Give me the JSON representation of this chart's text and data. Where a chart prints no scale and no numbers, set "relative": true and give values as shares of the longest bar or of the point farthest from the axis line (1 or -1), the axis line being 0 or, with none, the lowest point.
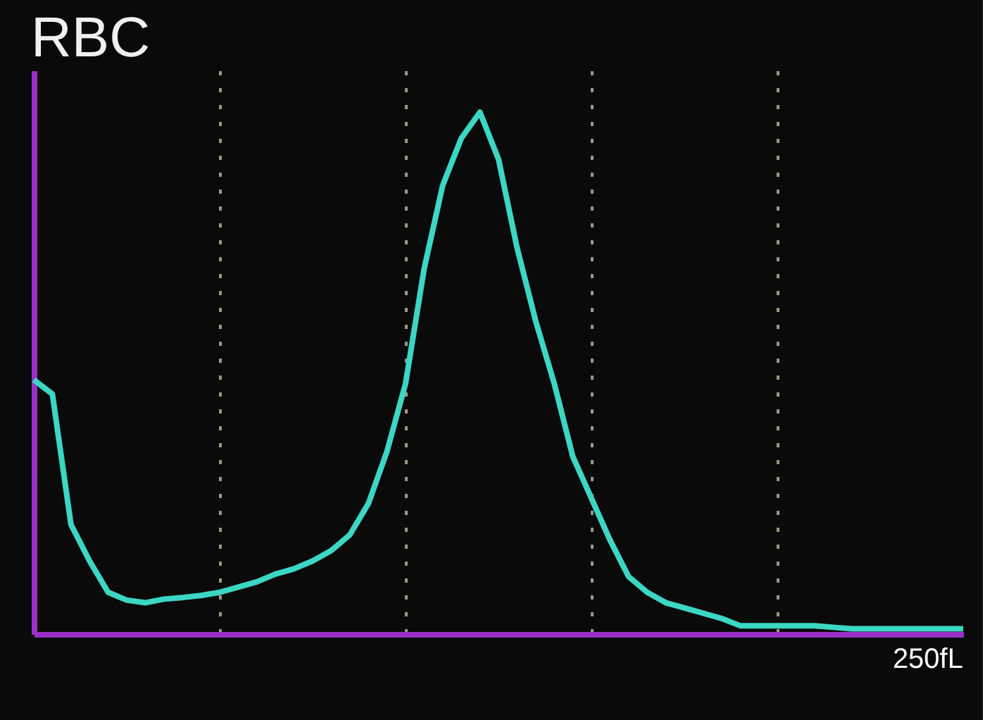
{
  "chart_data": {
    "type": "line",
    "title": "RBC",
    "relative": true,
    "grid": "x",
    "marker": "none",
    "line_style": "solid",
    "annotations": [
      "250fL"
    ],
    "categories": [
      null,
      null,
      null,
      null,
      null,
      null,
      null,
      null,
      null,
      null,
      null,
      null,
      null,
      null,
      null,
      null,
      null,
      null,
      null,
      null,
      null,
      null,
      null,
      null,
      null,
      null,
      null,
      null,
      null,
      null,
      null,
      null,
      null,
      null,
      null,
      null,
      null,
      null,
      null,
      null,
      null,
      null,
      null,
      null,
      null,
      null,
      null,
      null,
      null,
      null,
      null
    ],
    "series": [
      {
        "color": "#3cd6c4",
        "values": [
          0.487,
          0.46,
          0.21,
          0.14,
          0.08,
          0.065,
          0.06,
          0.067,
          0.07,
          0.074,
          0.08,
          0.09,
          0.1,
          0.115,
          0.125,
          0.14,
          0.16,
          0.19,
          0.25,
          0.35,
          0.48,
          0.7,
          0.86,
          0.95,
          1.0,
          0.91,
          0.74,
          0.6,
          0.48,
          0.34,
          0.26,
          0.18,
          0.11,
          0.08,
          0.06,
          0.05,
          0.04,
          0.03,
          0.016,
          0.016,
          0.016,
          0.016,
          0.016,
          0.013,
          0.01,
          0.01,
          0.01,
          0.01,
          0.01,
          0.01,
          0.01
        ]
      }
    ]
  }
}
